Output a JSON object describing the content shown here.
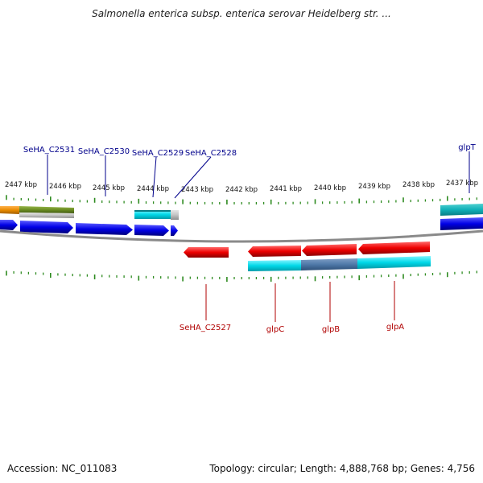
{
  "title": "Salmonella enterica subsp. enterica serovar Heidelberg str. ...",
  "footer": {
    "accession": "Accession: NC_011083",
    "summary": "Topology: circular; Length: 4,888,768 bp; Genes: 4,756"
  },
  "colors": {
    "forward_gene": "#0000e6",
    "reverse_gene": "#ee0000",
    "forward_label": "#00008b",
    "reverse_label": "#b00000",
    "backbone": "#8a8a8a",
    "tick": "#2e8b20",
    "cyan_feature": "#00d8e8",
    "steel_feature": "#4f79a8",
    "olive_feature": "#6b8e23",
    "orange_feature": "#e88a00",
    "grey_feature": "#c8c8c8"
  },
  "ruler": {
    "labels": [
      "2447 kbp",
      "2446 kbp",
      "2445 kbp",
      "2444 kbp",
      "2443 kbp",
      "2442 kbp",
      "2441 kbp",
      "2440 kbp",
      "2439 kbp",
      "2438 kbp",
      "2437 kbp"
    ]
  },
  "genes": {
    "forward_labels": [
      "SeHA_C2531",
      "SeHA_C2530",
      "SeHA_C2529",
      "SeHA_C2528",
      "glpT"
    ],
    "reverse_labels": [
      "SeHA_C2527",
      "glpC",
      "glpB",
      "glpA"
    ]
  }
}
